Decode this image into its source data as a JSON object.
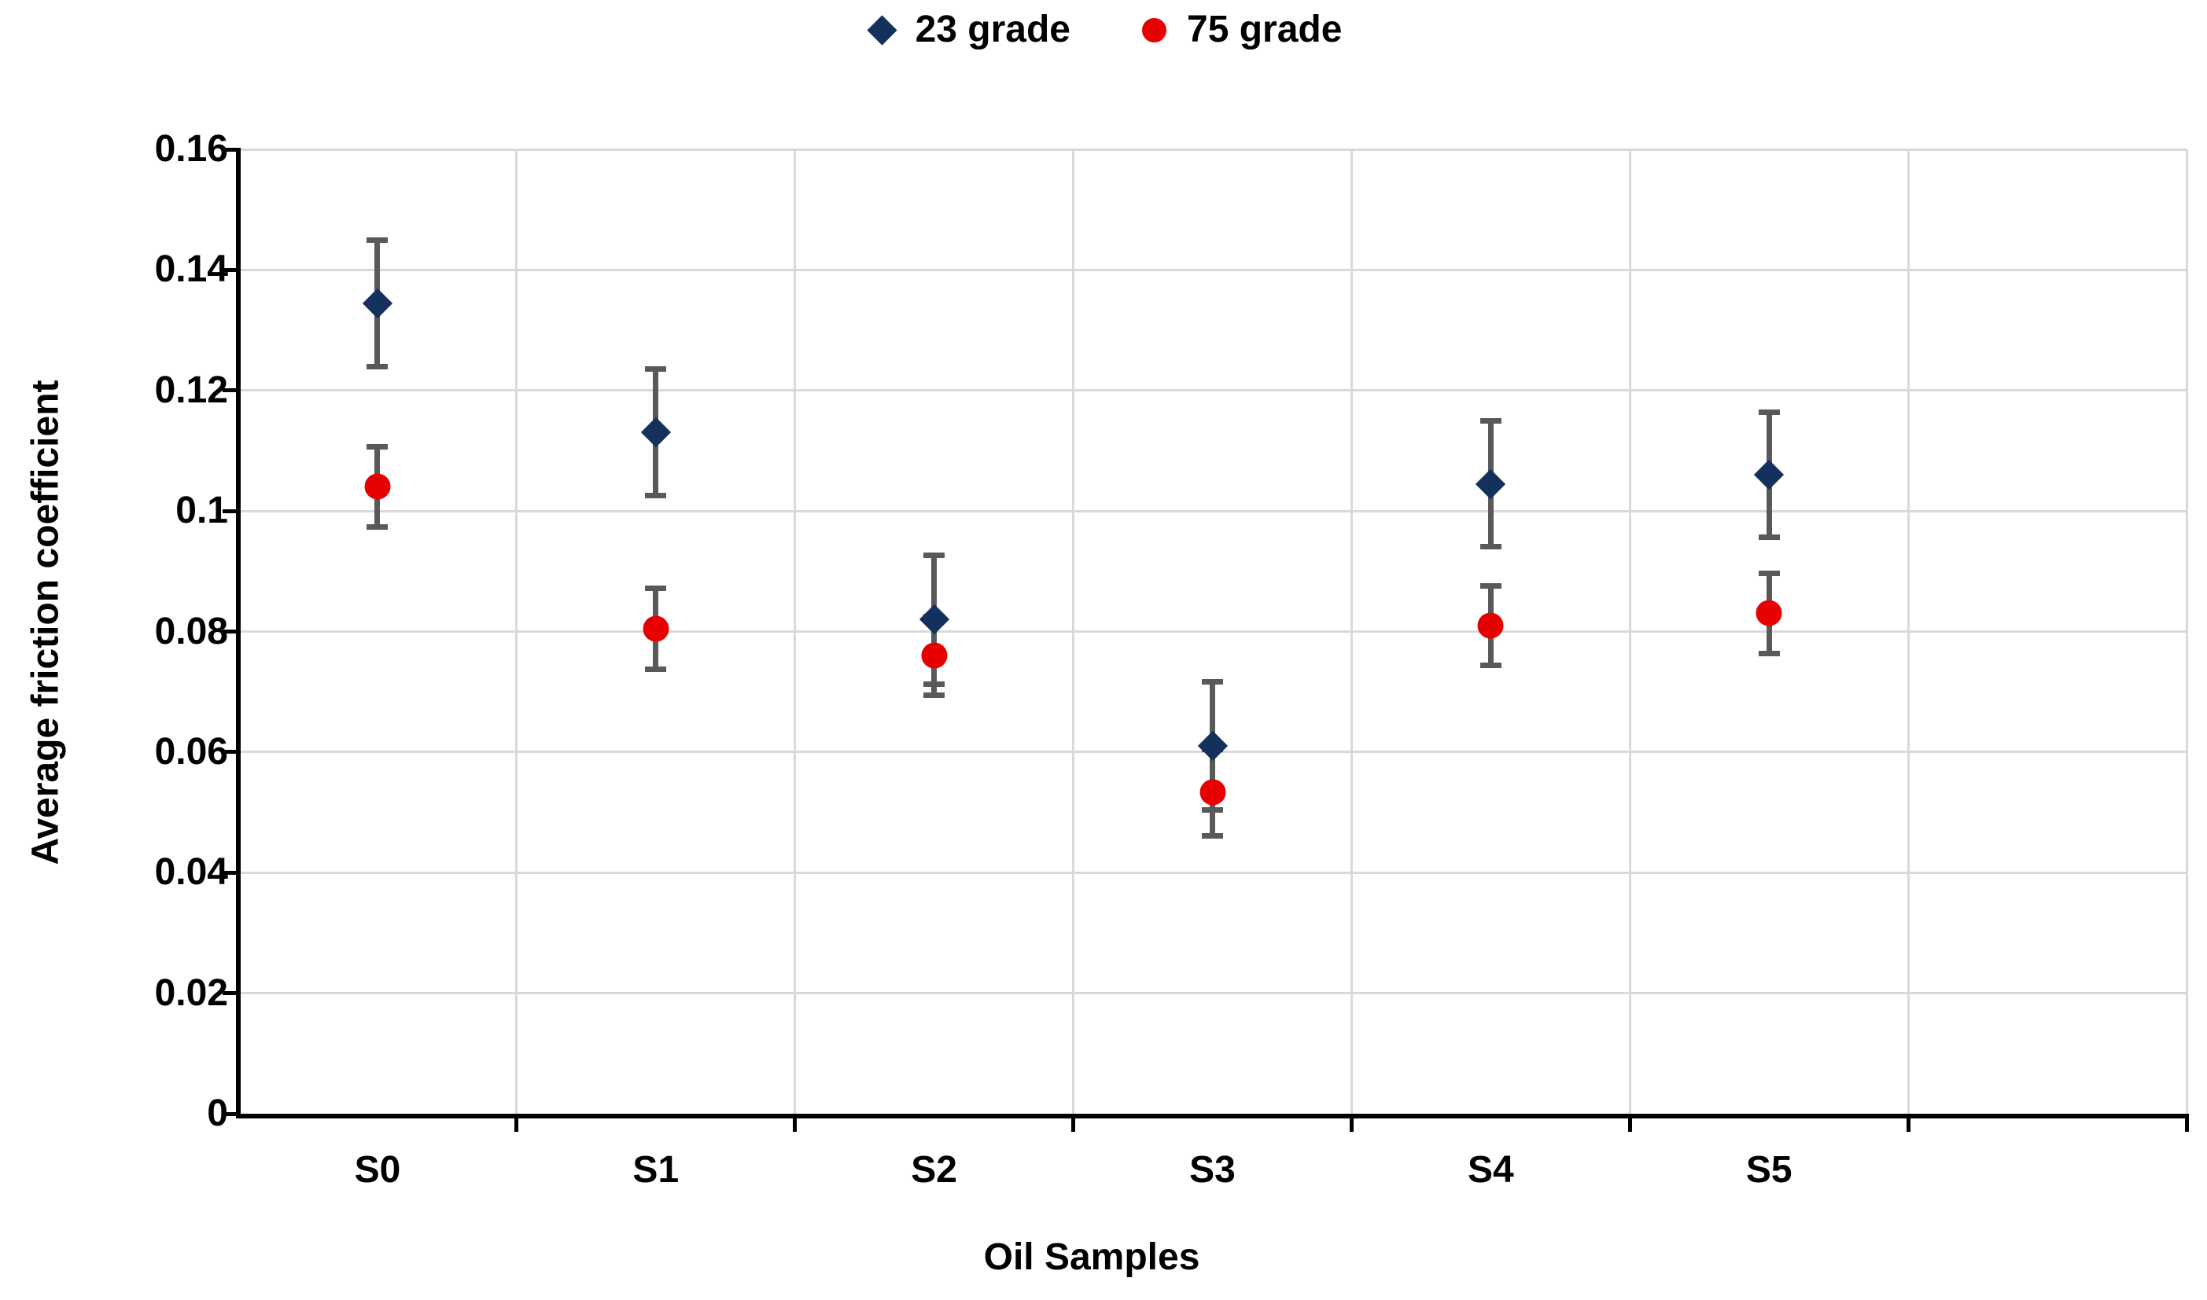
{
  "chart_data": {
    "type": "scatter",
    "title": "",
    "xlabel": "Oil Samples",
    "ylabel": "Average friction coefficient",
    "ylim": [
      0,
      0.16
    ],
    "y_tick_values": [
      0,
      0.02,
      0.04,
      0.06,
      0.08,
      0.1,
      0.12,
      0.14,
      0.16
    ],
    "y_tick_labels": [
      "0",
      "0.02",
      "0.04",
      "0.06",
      "0.08",
      "0.1",
      "0.12",
      "0.14",
      "0.16"
    ],
    "categories": [
      "S0",
      "S1",
      "S2",
      "S3",
      "S4",
      "S5"
    ],
    "x_slots": 7,
    "grid": "on",
    "legend_position": "top-center",
    "gridline_color": "#D9D9D9",
    "axis_color": "#000000",
    "error_bar_color": "#595959",
    "series": [
      {
        "name": "23 grade",
        "marker": "diamond",
        "color": "#14305C",
        "values": [
          0.1345,
          0.113,
          0.082,
          0.061,
          0.1045,
          0.106
        ],
        "errors": [
          0.0105,
          0.0105,
          0.0107,
          0.0106,
          0.0104,
          0.0104
        ]
      },
      {
        "name": "75 grade",
        "marker": "circle",
        "color": "#E60000",
        "values": [
          0.104,
          0.0805,
          0.076,
          0.0533,
          0.081,
          0.083
        ],
        "errors": [
          0.0066,
          0.0067,
          0.0065,
          0.0072,
          0.0066,
          0.0066
        ]
      }
    ]
  }
}
